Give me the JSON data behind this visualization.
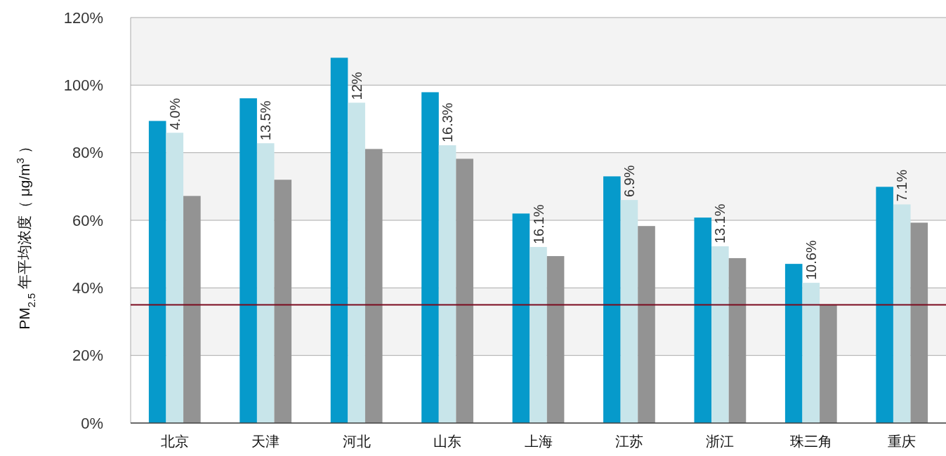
{
  "chart_data": {
    "type": "bar",
    "ylabel": "PM$_{2.5}$ 年平均浓度（ μg/m$^{3}$ ）",
    "categories": [
      "北京",
      "天津",
      "河北",
      "山东",
      "上海",
      "江苏",
      "浙江",
      "珠三角",
      "重庆"
    ],
    "series": [
      {
        "color": "#069acb",
        "values": [
          89.4,
          96.1,
          108.1,
          97.9,
          62.0,
          73.0,
          60.8,
          47.1,
          69.9
        ]
      },
      {
        "color": "#c8e5ea",
        "values": [
          85.9,
          82.8,
          94.8,
          82.2,
          52.1,
          66.0,
          52.3,
          41.5,
          64.7
        ]
      },
      {
        "color": "#939393",
        "values": [
          67.2,
          72.0,
          81.1,
          78.2,
          49.4,
          58.3,
          48.8,
          35.1,
          59.3
        ]
      }
    ],
    "ylim": [
      0,
      120
    ],
    "yticks": [
      {
        "value": 0,
        "label": "0%"
      },
      {
        "value": 20,
        "label": "20%"
      },
      {
        "value": 40,
        "label": "40%"
      },
      {
        "value": 60,
        "label": "60%"
      },
      {
        "value": 80,
        "label": "80%"
      },
      {
        "value": 100,
        "label": "100%"
      },
      {
        "value": 120,
        "label": "120%"
      }
    ],
    "grid": "y",
    "annotations": [
      {
        "text": "4.0%",
        "x": "北京",
        "y": 85.9
      },
      {
        "text": "13.5%",
        "x": "天津",
        "y": 82.8
      },
      {
        "text": "12%",
        "x": "河北",
        "y": 94.8
      },
      {
        "text": "16.3%",
        "x": "山东",
        "y": 82.2
      },
      {
        "text": "16.1%",
        "x": "上海",
        "y": 52.1
      },
      {
        "text": "6.9%",
        "x": "江苏",
        "y": 66.0
      },
      {
        "text": "13.1%",
        "x": "浙江",
        "y": 52.3
      },
      {
        "text": "10.6%",
        "x": "珠三角",
        "y": 41.5
      },
      {
        "text": "7.1%",
        "x": "重庆",
        "y": 64.7
      }
    ],
    "ref_lines": [
      {
        "axis": "y",
        "value": 35,
        "color": "#7b0a1e"
      }
    ],
    "bands": [
      {
        "axis": "y",
        "from": 20,
        "to": 40,
        "color": "#f3f3f3"
      },
      {
        "axis": "y",
        "from": 60,
        "to": 80,
        "color": "#f3f3f3"
      },
      {
        "axis": "y",
        "from": 100,
        "to": 120,
        "color": "#f3f3f3"
      }
    ]
  }
}
